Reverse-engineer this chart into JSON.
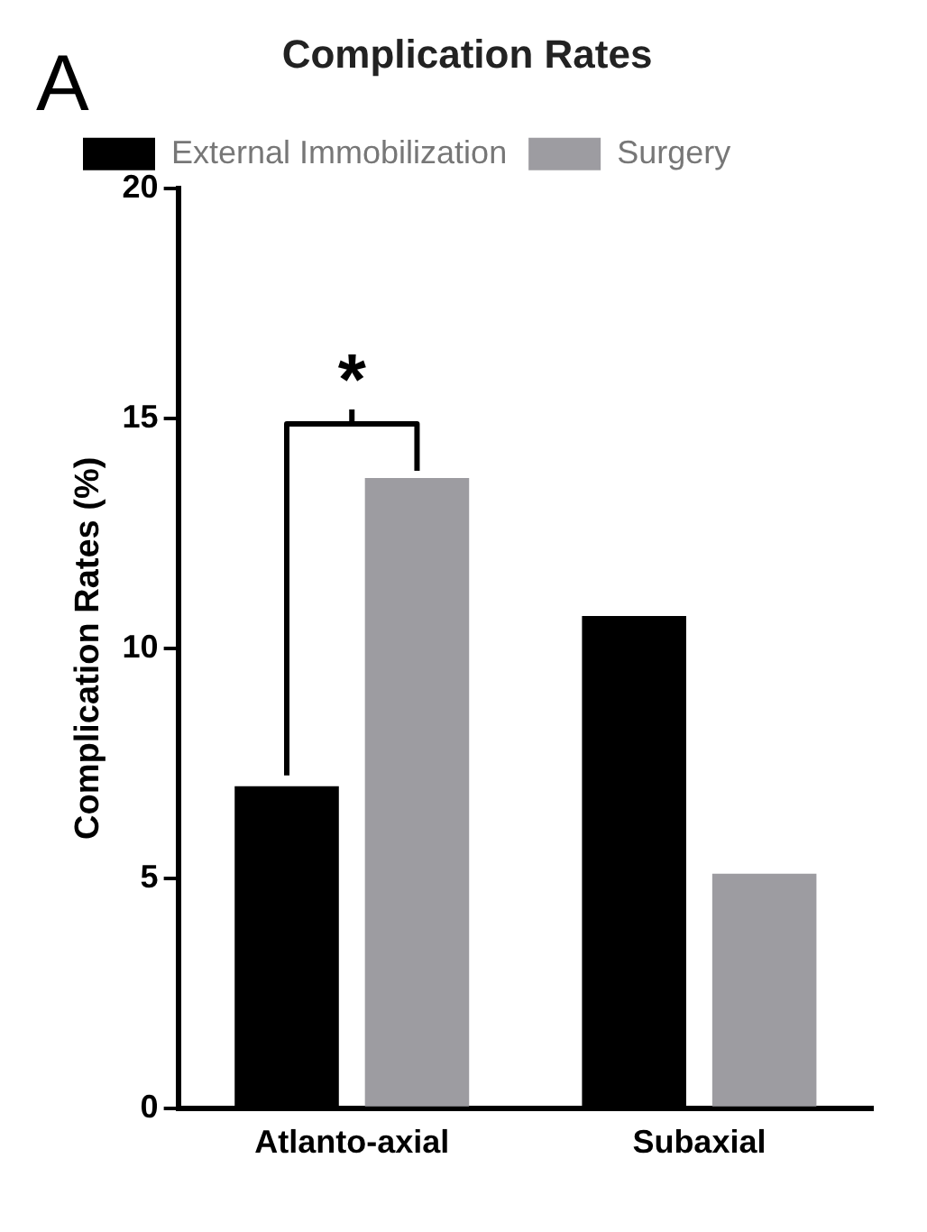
{
  "chart_data": {
    "type": "bar",
    "title": "Complication Rates",
    "ylabel": "Complication Rates (%)",
    "categories": [
      "Atlanto-axial",
      "Subaxial"
    ],
    "series": [
      {
        "name": "External Immobilization",
        "color": "#000000",
        "values": [
          7.0,
          10.7
        ]
      },
      {
        "name": "Surgery",
        "color": "#9d9ca1",
        "values": [
          13.7,
          5.1
        ]
      }
    ],
    "ylim": [
      0,
      20
    ],
    "yticks": [
      0,
      5,
      10,
      15,
      20
    ],
    "grid": false,
    "legend": "top left",
    "annotations": [
      "A",
      "*"
    ]
  }
}
